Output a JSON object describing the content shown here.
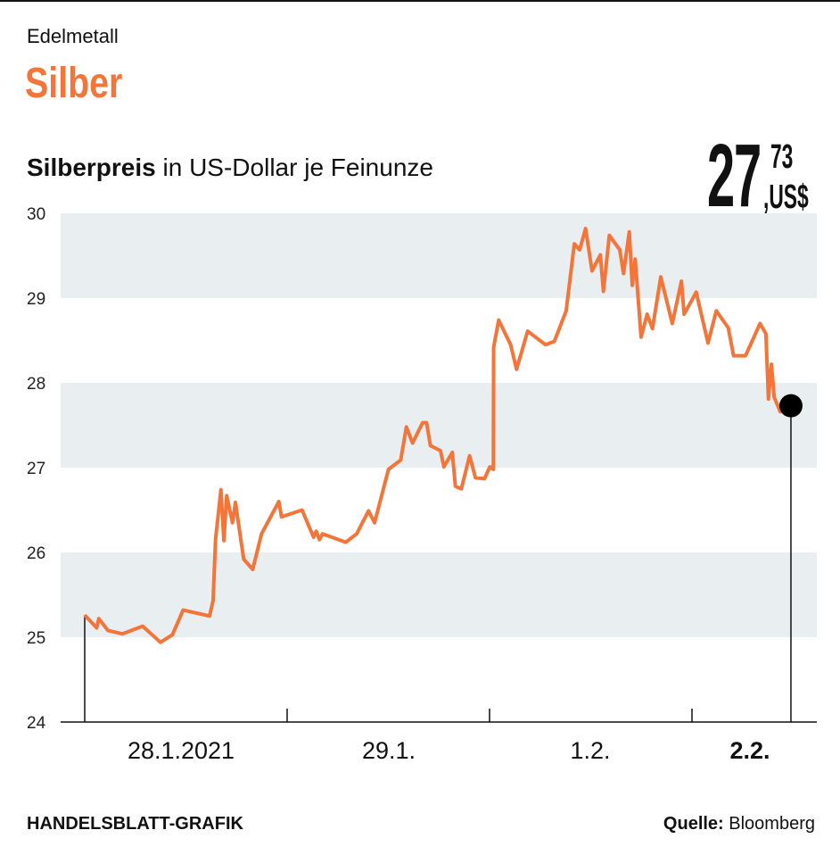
{
  "header": {
    "kicker": "Edelmetall",
    "title": "Silber",
    "subtitle_bold": "Silberpreis",
    "subtitle_rest": " in US-Dollar je Feinunze"
  },
  "current_value": {
    "integer": "27",
    "decimals": "73",
    "unit": ",US$"
  },
  "footer": {
    "credit": "HANDELSBLATT-GRAFIK",
    "source_label": "Quelle:",
    "source": " Bloomberg"
  },
  "colors": {
    "line": "#f47539",
    "band": "#e9eef1",
    "marker": "#000000"
  },
  "chart_data": {
    "type": "line",
    "ylim": [
      24,
      30
    ],
    "yticks": [
      24,
      25,
      26,
      27,
      28,
      29,
      30
    ],
    "x_days": [
      "2021-01-28",
      "2021-01-29",
      "2021-02-01",
      "2021-02-02"
    ],
    "xtick_labels": [
      "28.1.2021",
      "29.1.",
      "1.2.",
      "2.2."
    ],
    "grid": "alternating horizontal bands",
    "last_point_marker": true,
    "points": [
      [
        "2021-01-28T00:00",
        25.26
      ],
      [
        "2021-01-28T01:25",
        25.11
      ],
      [
        "2021-01-28T01:40",
        25.22
      ],
      [
        "2021-01-28T02:45",
        25.08
      ],
      [
        "2021-01-28T04:28",
        25.04
      ],
      [
        "2021-01-28T06:52",
        25.13
      ],
      [
        "2021-01-28T08:59",
        24.94
      ],
      [
        "2021-01-28T10:24",
        25.03
      ],
      [
        "2021-01-28T11:40",
        25.32
      ],
      [
        "2021-01-28T14:48",
        25.25
      ],
      [
        "2021-01-28T15:13",
        25.43
      ],
      [
        "2021-01-28T15:31",
        26.16
      ],
      [
        "2021-01-28T16:09",
        26.74
      ],
      [
        "2021-01-28T16:30",
        26.14
      ],
      [
        "2021-01-28T16:50",
        26.67
      ],
      [
        "2021-01-28T17:31",
        26.35
      ],
      [
        "2021-01-28T17:52",
        26.59
      ],
      [
        "2021-01-28T18:51",
        25.92
      ],
      [
        "2021-01-28T19:55",
        25.8
      ],
      [
        "2021-01-28T20:58",
        26.22
      ],
      [
        "2021-01-28T23:01",
        26.6
      ],
      [
        "2021-01-28T23:20",
        26.42
      ],
      [
        "2021-01-29T01:46",
        26.5
      ],
      [
        "2021-01-29T03:08",
        26.18
      ],
      [
        "2021-01-29T03:27",
        26.25
      ],
      [
        "2021-01-29T03:50",
        26.15
      ],
      [
        "2021-01-29T04:12",
        26.22
      ],
      [
        "2021-01-29T06:57",
        26.12
      ],
      [
        "2021-01-29T08:15",
        26.22
      ],
      [
        "2021-01-29T09:39",
        26.49
      ],
      [
        "2021-01-29T10:22",
        26.35
      ],
      [
        "2021-01-29T12:01",
        26.98
      ],
      [
        "2021-01-29T13:28",
        27.09
      ],
      [
        "2021-01-29T14:08",
        27.48
      ],
      [
        "2021-01-29T14:52",
        27.29
      ],
      [
        "2021-01-29T16:04",
        27.53
      ],
      [
        "2021-01-29T16:32",
        27.53
      ],
      [
        "2021-01-29T16:59",
        27.26
      ],
      [
        "2021-01-29T18:11",
        27.2
      ],
      [
        "2021-01-29T18:35",
        27.01
      ],
      [
        "2021-01-29T19:35",
        27.18
      ],
      [
        "2021-01-29T19:57",
        26.78
      ],
      [
        "2021-01-29T20:39",
        26.75
      ],
      [
        "2021-01-29T21:38",
        27.14
      ],
      [
        "2021-01-29T22:20",
        26.88
      ],
      [
        "2021-01-29T23:24",
        26.87
      ],
      [
        "2021-02-01T00:02",
        27.01
      ],
      [
        "2021-02-01T00:27",
        26.98
      ],
      [
        "2021-02-01T00:29",
        28.42
      ],
      [
        "2021-02-01T01:05",
        28.74
      ],
      [
        "2021-02-01T02:30",
        28.45
      ],
      [
        "2021-02-01T03:12",
        28.16
      ],
      [
        "2021-02-01T04:31",
        28.61
      ],
      [
        "2021-02-01T06:38",
        28.45
      ],
      [
        "2021-02-01T07:41",
        28.49
      ],
      [
        "2021-02-01T09:05",
        28.85
      ],
      [
        "2021-02-01T10:03",
        29.64
      ],
      [
        "2021-02-01T10:41",
        29.57
      ],
      [
        "2021-02-01T11:23",
        29.82
      ],
      [
        "2021-02-01T12:09",
        29.32
      ],
      [
        "2021-02-01T13:08",
        29.51
      ],
      [
        "2021-02-01T13:30",
        29.08
      ],
      [
        "2021-02-01T14:12",
        29.74
      ],
      [
        "2021-02-01T15:26",
        29.57
      ],
      [
        "2021-02-01T15:53",
        29.29
      ],
      [
        "2021-02-01T16:34",
        29.78
      ],
      [
        "2021-02-01T16:55",
        29.15
      ],
      [
        "2021-02-01T17:16",
        29.46
      ],
      [
        "2021-02-01T17:58",
        28.54
      ],
      [
        "2021-02-01T18:41",
        28.81
      ],
      [
        "2021-02-01T19:19",
        28.64
      ],
      [
        "2021-02-01T20:18",
        29.25
      ],
      [
        "2021-02-01T21:40",
        28.7
      ],
      [
        "2021-02-01T22:45",
        29.2
      ],
      [
        "2021-02-01T23:04",
        28.81
      ],
      [
        "2021-02-02T00:30",
        29.07
      ],
      [
        "2021-02-02T01:54",
        28.47
      ],
      [
        "2021-02-02T02:53",
        28.85
      ],
      [
        "2021-02-02T04:18",
        28.65
      ],
      [
        "2021-02-02T04:56",
        28.32
      ],
      [
        "2021-02-02T06:21",
        28.32
      ],
      [
        "2021-02-02T08:04",
        28.7
      ],
      [
        "2021-02-02T08:46",
        28.58
      ],
      [
        "2021-02-02T09:04",
        27.81
      ],
      [
        "2021-02-02T09:25",
        28.22
      ],
      [
        "2021-02-02T09:45",
        27.83
      ],
      [
        "2021-02-02T10:28",
        27.66
      ],
      [
        "2021-02-02T11:44",
        27.73
      ]
    ]
  }
}
